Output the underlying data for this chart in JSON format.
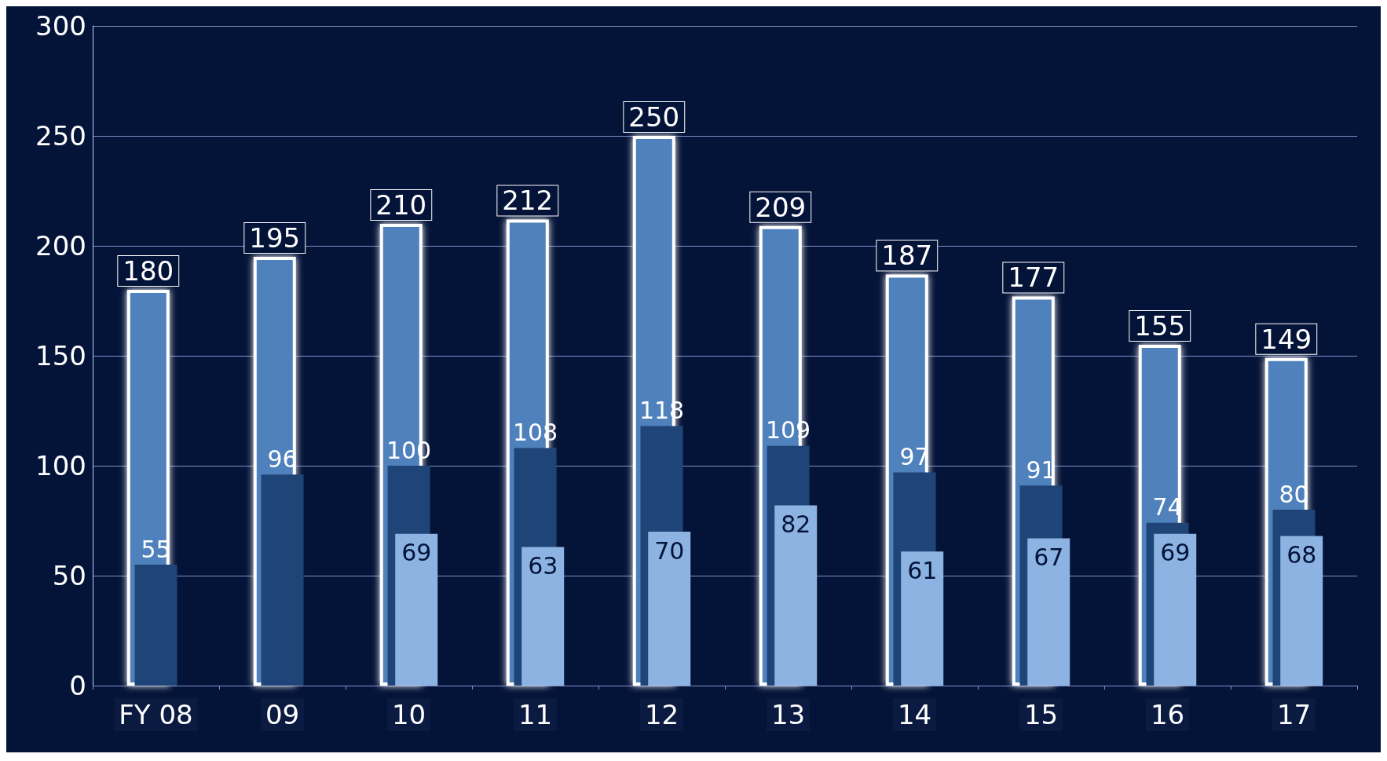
{
  "chart_data": {
    "type": "bar",
    "categories": [
      "FY 08",
      "09",
      "10",
      "11",
      "12",
      "13",
      "14",
      "15",
      "16",
      "17"
    ],
    "series": [
      {
        "color": "#4f81bd",
        "values": [
          180,
          195,
          210,
          212,
          250,
          209,
          187,
          177,
          155,
          149
        ]
      },
      {
        "color": "#1f4477",
        "values": [
          55,
          96,
          100,
          108,
          118,
          109,
          97,
          91,
          74,
          80
        ]
      },
      {
        "color": "#8db3e2",
        "values": [
          null,
          null,
          69,
          63,
          70,
          82,
          61,
          67,
          69,
          68
        ]
      }
    ],
    "ylim": [
      0,
      300
    ],
    "yticks": [
      0,
      50,
      100,
      150,
      200,
      250,
      300
    ],
    "grid": "y",
    "data_labels": true
  }
}
